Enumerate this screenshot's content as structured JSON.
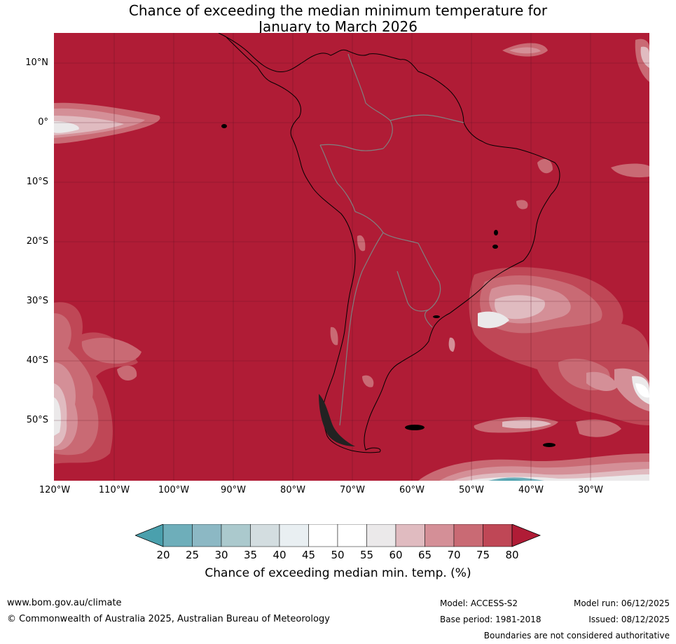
{
  "title": {
    "line1": "Chance of exceeding the median minimum temperature for",
    "line2": "January to March 2026"
  },
  "map": {
    "region": "South America",
    "latitude_labels": [
      "10°N",
      "0°",
      "10°S",
      "20°S",
      "30°S",
      "40°S",
      "50°S"
    ],
    "longitude_labels": [
      "120°W",
      "110°W",
      "100°W",
      "90°W",
      "80°W",
      "70°W",
      "60°W",
      "50°W",
      "40°W",
      "30°W"
    ],
    "dominant_category": "above 80%",
    "colors": {
      "c20": "#4aa0ad",
      "c25": "#6eaeba",
      "c30": "#8cb8c4",
      "c35": "#abc9cd",
      "c40": "#d3dde0",
      "c45": "#e9eff2",
      "c50": "#ffffff",
      "c55": "#ffffff",
      "c60": "#ebe9ea",
      "c65": "#e0bbc0",
      "c70": "#d48f97",
      "c75": "#c96a74",
      "c80": "#bf4756",
      "c85": "#b01c36"
    }
  },
  "colorbar": {
    "ticks": [
      "20",
      "25",
      "30",
      "35",
      "40",
      "45",
      "50",
      "55",
      "60",
      "65",
      "70",
      "75",
      "80"
    ],
    "label": "Chance of exceeding median min. temp. (%)"
  },
  "footer": {
    "website": "www.bom.gov.au/climate",
    "copyright": "© Commonwealth of Australia 2025, Australian Bureau of Meteorology",
    "model": "Model: ACCESS-S2",
    "base_period": "Base period: 1981-2018",
    "model_run": "Model run: 06/12/2025",
    "issued": "Issued: 08/12/2025",
    "disclaimer": "Boundaries are not considered authoritative"
  }
}
